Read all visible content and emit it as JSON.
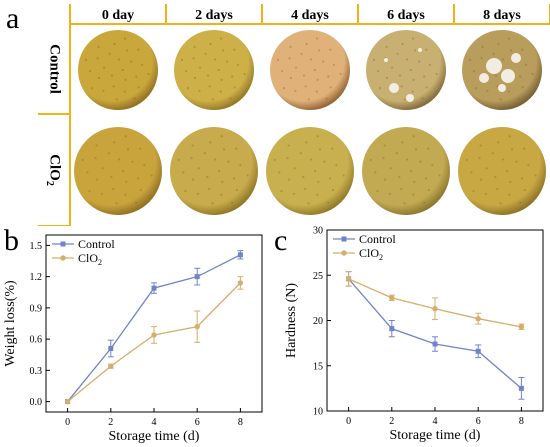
{
  "panels": {
    "a": "a",
    "b": "b",
    "c": "c"
  },
  "photo_grid": {
    "columns": [
      "0 day",
      "2 days",
      "4 days",
      "6 days",
      "8 days"
    ],
    "rows": [
      {
        "label": "Control",
        "sub": ""
      },
      {
        "label": "ClO",
        "sub": "2"
      }
    ],
    "frame_color": "#f2b21c",
    "fruit_colors": {
      "control": [
        [
          "#c9a73b",
          "#8a6a1f"
        ],
        [
          "#cdb047",
          "#8d7224"
        ],
        [
          "#e0b27a",
          "#8a5a2e"
        ],
        [
          "#c8b072",
          "#7a6235"
        ],
        [
          "#b99d5c",
          "#6d5830"
        ]
      ],
      "clo2": [
        [
          "#c9a43d",
          "#8a6a1f"
        ],
        [
          "#c7ab4c",
          "#887020"
        ],
        [
          "#c9b04e",
          "#8a7424"
        ],
        [
          "#c2aa52",
          "#84702a"
        ],
        [
          "#c8a843",
          "#876c22"
        ]
      ]
    }
  },
  "chart_data": [
    {
      "type": "line",
      "title": "",
      "xlabel": "Storage time (d)",
      "ylabel": "Weight loss(%)",
      "x": [
        0,
        2,
        4,
        6,
        8
      ],
      "xticks": [
        "0",
        "2",
        "4",
        "6",
        "8"
      ],
      "yticks": [
        "0.0",
        "0.3",
        "0.6",
        "0.9",
        "1.2",
        "1.5"
      ],
      "xlim": [
        -1,
        9
      ],
      "ylim": [
        -0.1,
        1.6
      ],
      "legend_position": "top-left",
      "series": [
        {
          "name": "Control",
          "name_sub": "",
          "color": "#7083c9",
          "marker": "square",
          "values": [
            0.0,
            0.51,
            1.09,
            1.2,
            1.41
          ],
          "errors": [
            0.0,
            0.08,
            0.05,
            0.08,
            0.04
          ]
        },
        {
          "name": "ClO",
          "name_sub": "2",
          "color": "#d4ae6c",
          "marker": "circle",
          "values": [
            0.0,
            0.34,
            0.64,
            0.72,
            1.14
          ],
          "errors": [
            0.0,
            0.02,
            0.08,
            0.15,
            0.06
          ]
        }
      ]
    },
    {
      "type": "line",
      "title": "",
      "xlabel": "Storage time (d)",
      "ylabel": "Hardness (N)",
      "x": [
        0,
        2,
        4,
        6,
        8
      ],
      "xticks": [
        "0",
        "2",
        "4",
        "6",
        "8"
      ],
      "yticks": [
        "10",
        "15",
        "20",
        "25",
        "30"
      ],
      "xlim": [
        -1,
        9
      ],
      "ylim": [
        10,
        30
      ],
      "legend_position": "top-left",
      "series": [
        {
          "name": "Control",
          "name_sub": "",
          "color": "#7083c9",
          "marker": "square",
          "values": [
            24.6,
            19.1,
            17.4,
            16.6,
            12.5
          ],
          "errors": [
            0.8,
            0.9,
            0.8,
            0.7,
            1.2
          ]
        },
        {
          "name": "ClO",
          "name_sub": "2",
          "color": "#d4ae6c",
          "marker": "circle",
          "values": [
            24.6,
            22.5,
            21.3,
            20.2,
            19.3
          ],
          "errors": [
            0.8,
            0.3,
            1.2,
            0.6,
            0.3
          ]
        }
      ]
    }
  ]
}
